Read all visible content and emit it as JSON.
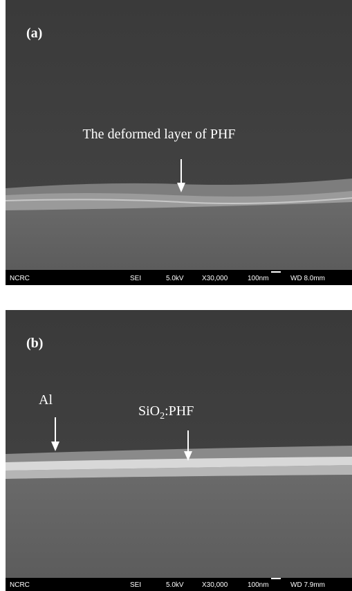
{
  "panels": [
    {
      "label": "(a)",
      "annotations": [
        {
          "text": "The deformed layer of PHF"
        }
      ],
      "info_bar": [
        "NCRC",
        "SEI",
        "5.0kV",
        "X30,000",
        "100nm",
        "WD 8.0mm"
      ]
    },
    {
      "label": "(b)",
      "annotations": [
        {
          "text": "Al"
        },
        {
          "text_parts": [
            "SiO",
            "2",
            ":PHF"
          ]
        }
      ],
      "info_bar": [
        "NCRC",
        "SEI",
        "5.0kV",
        "X30,000",
        "100nm",
        "WD 7.9mm"
      ]
    }
  ]
}
